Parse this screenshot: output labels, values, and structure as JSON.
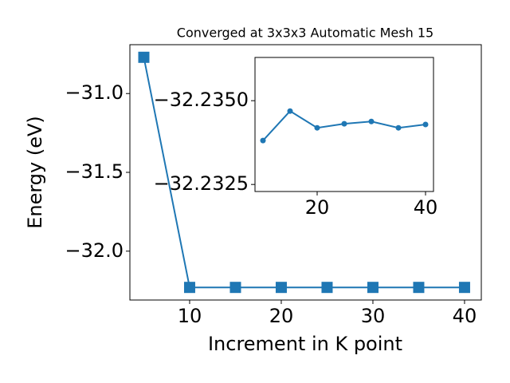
{
  "chart_data": [
    {
      "type": "line",
      "title": "Converged at 3x3x3 Automatic Mesh 15",
      "xlabel": "Increment in K point",
      "ylabel": "Energy (eV)",
      "x": [
        5,
        10,
        15,
        20,
        25,
        30,
        35,
        40
      ],
      "values": [
        -30.77,
        -32.23,
        -32.23,
        -32.23,
        -32.23,
        -32.23,
        -32.23,
        -32.23
      ],
      "color": "#1f77b4",
      "marker": "square",
      "xlim": [
        3.48,
        41.83
      ],
      "ylim": [
        -32.31,
        -30.69
      ],
      "xticks": [
        10,
        20,
        30,
        40
      ],
      "yticks": [
        {
          "value": -32.0,
          "label": "−32.0"
        },
        {
          "value": -31.5,
          "label": "−31.5"
        },
        {
          "value": -31.0,
          "label": "−31.0"
        }
      ]
    },
    {
      "type": "line",
      "x": [
        10,
        15,
        20,
        25,
        30,
        35,
        40
      ],
      "values": [
        -32.23381,
        -32.23469,
        -32.23419,
        -32.23431,
        -32.23438,
        -32.23419,
        -32.23429
      ],
      "color": "#1f77b4",
      "marker": "circle",
      "xlim": [
        8.53,
        41.47
      ],
      "ylim": [
        -32.23229,
        -32.23629
      ],
      "xticks": [
        20,
        40
      ],
      "yticks": [
        {
          "value": -32.235,
          "label": "−32.2350"
        },
        {
          "value": -32.2325,
          "label": "−32.2325"
        }
      ]
    }
  ]
}
